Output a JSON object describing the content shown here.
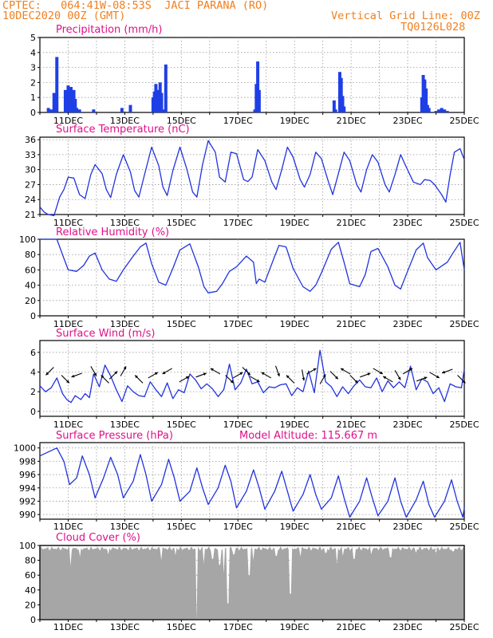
{
  "header": {
    "line1": "CPTEC:   064:41W-08:53S  JACI PARANA (RO)",
    "line2": "10DEC2020 00Z (GMT)",
    "grid_note": "Vertical Grid Line: 00Z",
    "run_code": "TQ0126L028"
  },
  "colors": {
    "header": "#f08020",
    "panel_title": "#e0108a",
    "series_line": "#2233dd",
    "bars": "#1f3fe6",
    "cloud_fill": "#a6a6a6",
    "wind_arrow": "#000000"
  },
  "x_axis": {
    "start_day": 10,
    "end_day": 25,
    "tick_labels": [
      "11DEC",
      "13DEC",
      "15DEC",
      "17DEC",
      "19DEC",
      "21DEC",
      "23DEC",
      "25DEC"
    ],
    "grid": "vertical dotted at 00Z"
  },
  "chart_data": [
    {
      "id": "precip",
      "type": "bar",
      "title": "Precipitation (mm/h)",
      "ylim": [
        0,
        5
      ],
      "yticks": [
        0,
        1,
        2,
        3,
        4,
        5
      ],
      "x": [
        10.3,
        10.4,
        10.5,
        10.55,
        10.6,
        10.9,
        11.0,
        11.05,
        11.1,
        11.15,
        11.2,
        11.25,
        11.3,
        11.4,
        11.9,
        12.9,
        13.2,
        14.0,
        14.05,
        14.1,
        14.15,
        14.2,
        14.25,
        14.3,
        14.4,
        14.45,
        17.6,
        17.65,
        17.7,
        17.75,
        20.4,
        20.45,
        20.6,
        20.65,
        20.7,
        20.75,
        23.5,
        23.55,
        23.6,
        23.65,
        23.7,
        23.75,
        24.0,
        24.1,
        24.2,
        24.3,
        24.4
      ],
      "values": [
        0.3,
        0.2,
        1.3,
        0.2,
        3.7,
        1.5,
        1.8,
        1.6,
        1.7,
        1.3,
        1.5,
        0.9,
        0.3,
        0.2,
        0.2,
        0.3,
        0.5,
        1.0,
        1.4,
        1.9,
        1.3,
        1.5,
        2.0,
        1.3,
        0.2,
        3.2,
        0.2,
        1.9,
        3.4,
        1.5,
        0.8,
        0.2,
        2.7,
        2.3,
        1.1,
        0.4,
        1.0,
        2.5,
        2.2,
        1.6,
        0.5,
        0.3,
        0.1,
        0.2,
        0.3,
        0.2,
        0.1
      ]
    },
    {
      "id": "temp",
      "type": "line",
      "title": "Surface Temperature (nC)",
      "ylim": [
        21,
        36.5
      ],
      "yticks": [
        21,
        24,
        27,
        30,
        33,
        36
      ],
      "x": [
        10.0,
        10.15,
        10.3,
        10.5,
        10.7,
        10.85,
        11.0,
        11.2,
        11.4,
        11.6,
        11.8,
        11.95,
        12.2,
        12.35,
        12.5,
        12.7,
        12.95,
        13.2,
        13.35,
        13.5,
        13.7,
        13.95,
        14.2,
        14.35,
        14.5,
        14.7,
        14.95,
        15.2,
        15.4,
        15.55,
        15.75,
        15.95,
        16.2,
        16.35,
        16.55,
        16.75,
        16.95,
        17.2,
        17.35,
        17.5,
        17.7,
        17.95,
        18.2,
        18.35,
        18.55,
        18.75,
        18.95,
        19.2,
        19.35,
        19.55,
        19.75,
        19.95,
        20.2,
        20.35,
        20.55,
        20.75,
        20.95,
        21.2,
        21.35,
        21.55,
        21.75,
        21.95,
        22.2,
        22.35,
        22.55,
        22.75,
        22.95,
        23.2,
        23.45,
        23.6,
        23.8,
        23.95,
        24.2,
        24.35,
        24.5,
        24.65,
        24.85,
        25.0
      ],
      "values": [
        22.5,
        21.5,
        21.0,
        20.8,
        24.5,
        26.0,
        28.5,
        28.3,
        25.0,
        24.2,
        29.0,
        31.0,
        29.2,
        26.0,
        24.4,
        29.0,
        33.0,
        29.5,
        25.8,
        24.5,
        29.0,
        34.5,
        30.8,
        26.5,
        24.8,
        29.8,
        34.5,
        30.0,
        25.5,
        24.5,
        31.0,
        35.8,
        33.5,
        28.5,
        27.5,
        33.5,
        33.2,
        28.0,
        27.6,
        28.5,
        34.0,
        31.8,
        27.5,
        26.0,
        30.0,
        34.5,
        32.5,
        28.0,
        26.5,
        29.0,
        33.5,
        32.2,
        27.5,
        25.0,
        29.2,
        33.5,
        31.8,
        27.0,
        25.5,
        30.0,
        33.0,
        31.5,
        27.0,
        25.5,
        29.0,
        33.0,
        30.5,
        27.5,
        27.0,
        28.0,
        27.8,
        27.0,
        25.0,
        23.5,
        29.0,
        33.5,
        34.2,
        32.0
      ]
    },
    {
      "id": "rh",
      "type": "line",
      "title": "Relative Humidity (%)",
      "ylim": [
        0,
        100
      ],
      "yticks": [
        0,
        20,
        40,
        60,
        80,
        100
      ],
      "x": [
        10.0,
        10.3,
        10.6,
        10.85,
        11.0,
        11.3,
        11.55,
        11.75,
        11.95,
        12.2,
        12.45,
        12.7,
        12.95,
        13.3,
        13.55,
        13.75,
        13.95,
        14.2,
        14.45,
        14.7,
        14.95,
        15.3,
        15.6,
        15.8,
        15.95,
        16.25,
        16.45,
        16.7,
        16.95,
        17.3,
        17.55,
        17.65,
        17.75,
        17.95,
        18.3,
        18.45,
        18.7,
        18.95,
        19.3,
        19.55,
        19.75,
        19.95,
        20.3,
        20.55,
        20.75,
        20.95,
        21.3,
        21.5,
        21.7,
        21.95,
        22.3,
        22.55,
        22.75,
        22.95,
        23.3,
        23.55,
        23.7,
        24.0,
        24.4,
        24.6,
        24.85,
        25.0
      ],
      "values": [
        100,
        100,
        100,
        75,
        60,
        58,
        66,
        78,
        82,
        60,
        48,
        45,
        60,
        78,
        90,
        95,
        68,
        44,
        40,
        62,
        86,
        94,
        64,
        38,
        30,
        32,
        42,
        58,
        64,
        78,
        70,
        42,
        48,
        44,
        78,
        92,
        90,
        62,
        38,
        32,
        40,
        56,
        87,
        96,
        70,
        42,
        38,
        54,
        84,
        88,
        64,
        40,
        35,
        54,
        86,
        95,
        76,
        60,
        70,
        82,
        96,
        60
      ]
    },
    {
      "id": "wind",
      "type": "line",
      "title": "Surface Wind (m/s)",
      "ylim": [
        -0.5,
        7.2
      ],
      "yticks": [
        0,
        2,
        4,
        6
      ],
      "x": [
        10.0,
        10.2,
        10.4,
        10.6,
        10.8,
        10.95,
        11.1,
        11.25,
        11.45,
        11.6,
        11.75,
        11.9,
        12.1,
        12.3,
        12.5,
        12.7,
        12.9,
        13.1,
        13.3,
        13.5,
        13.7,
        13.9,
        14.1,
        14.3,
        14.5,
        14.7,
        14.9,
        15.1,
        15.3,
        15.5,
        15.7,
        15.9,
        16.1,
        16.3,
        16.5,
        16.7,
        16.9,
        17.1,
        17.3,
        17.5,
        17.7,
        17.9,
        18.1,
        18.3,
        18.5,
        18.7,
        18.9,
        19.1,
        19.3,
        19.5,
        19.7,
        19.9,
        20.1,
        20.3,
        20.5,
        20.7,
        20.9,
        21.1,
        21.3,
        21.5,
        21.7,
        21.9,
        22.1,
        22.3,
        22.5,
        22.7,
        22.9,
        23.1,
        23.3,
        23.5,
        23.7,
        23.9,
        24.1,
        24.3,
        24.5,
        24.7,
        24.9,
        25.0
      ],
      "values": [
        2.6,
        2.0,
        2.4,
        3.4,
        1.8,
        1.2,
        0.9,
        1.6,
        1.2,
        1.8,
        1.4,
        3.8,
        2.5,
        4.7,
        3.6,
        2.2,
        1.0,
        2.6,
        2.0,
        1.6,
        1.5,
        3.0,
        2.2,
        1.5,
        2.9,
        1.3,
        2.2,
        1.9,
        3.8,
        3.2,
        2.3,
        2.8,
        2.3,
        1.5,
        2.2,
        4.8,
        2.2,
        2.9,
        4.3,
        2.8,
        3.0,
        1.9,
        2.5,
        2.4,
        2.7,
        2.8,
        1.6,
        2.4,
        2.0,
        4.1,
        1.9,
        6.2,
        3.0,
        2.5,
        1.5,
        2.5,
        1.8,
        2.6,
        3.2,
        2.5,
        2.4,
        3.4,
        2.0,
        3.1,
        2.4,
        3.0,
        2.4,
        4.6,
        2.2,
        3.3,
        3.0,
        1.8,
        2.4,
        1.0,
        2.8,
        2.5,
        2.4,
        4.3
      ]
    },
    {
      "id": "pressure",
      "type": "line",
      "title": "Surface Pressure (hPa)",
      "annotation": "Model Altitude: 115.667 m",
      "ylim": [
        989.3,
        1000.8
      ],
      "yticks": [
        990,
        992,
        994,
        996,
        998,
        1000
      ],
      "x": [
        10.0,
        10.3,
        10.6,
        10.85,
        11.05,
        11.3,
        11.5,
        11.75,
        11.95,
        12.25,
        12.5,
        12.75,
        12.95,
        13.3,
        13.55,
        13.75,
        13.95,
        14.3,
        14.55,
        14.75,
        14.95,
        15.3,
        15.55,
        15.75,
        15.95,
        16.3,
        16.55,
        16.75,
        16.95,
        17.3,
        17.55,
        17.75,
        17.95,
        18.3,
        18.55,
        18.75,
        18.95,
        19.3,
        19.55,
        19.75,
        19.95,
        20.3,
        20.55,
        20.75,
        20.95,
        21.3,
        21.55,
        21.75,
        21.95,
        22.3,
        22.55,
        22.75,
        22.95,
        23.3,
        23.55,
        23.75,
        23.95,
        24.3,
        24.55,
        24.75,
        24.95,
        25.0
      ],
      "values": [
        998.8,
        999.4,
        1000.0,
        998.0,
        994.5,
        995.5,
        998.8,
        996.0,
        992.5,
        995.5,
        998.6,
        996.0,
        992.5,
        995.0,
        999.0,
        996.0,
        992.0,
        994.5,
        998.3,
        995.5,
        992.0,
        993.5,
        997.0,
        994.0,
        991.5,
        994.0,
        997.4,
        995.0,
        991.0,
        993.5,
        996.7,
        994.0,
        990.8,
        993.5,
        996.5,
        993.5,
        990.5,
        993.0,
        996.0,
        993.0,
        990.8,
        992.5,
        995.8,
        992.5,
        989.6,
        992.0,
        995.5,
        992.5,
        989.8,
        992.0,
        995.5,
        992.0,
        989.6,
        992.2,
        995.0,
        991.5,
        989.6,
        992.0,
        995.2,
        992.0,
        989.6,
        991.0
      ]
    },
    {
      "id": "cloud",
      "type": "bar",
      "title": "Cloud Cover (%)",
      "ylim": [
        0,
        100
      ],
      "yticks": [
        0,
        20,
        40,
        60,
        80,
        100
      ],
      "note": "Full-width grey fill near 95-100% with dips",
      "dips": [
        {
          "x": 11.1,
          "value": 72
        },
        {
          "x": 11.4,
          "value": 85
        },
        {
          "x": 12.4,
          "value": 88
        },
        {
          "x": 14.3,
          "value": 80
        },
        {
          "x": 14.8,
          "value": 87
        },
        {
          "x": 15.55,
          "value": 0
        },
        {
          "x": 15.8,
          "value": 75
        },
        {
          "x": 16.1,
          "value": 82
        },
        {
          "x": 16.35,
          "value": 74
        },
        {
          "x": 16.5,
          "value": 62
        },
        {
          "x": 16.65,
          "value": 22
        },
        {
          "x": 16.85,
          "value": 88
        },
        {
          "x": 17.4,
          "value": 60
        },
        {
          "x": 17.55,
          "value": 80
        },
        {
          "x": 18.35,
          "value": 86
        },
        {
          "x": 18.85,
          "value": 35
        },
        {
          "x": 19.2,
          "value": 85
        },
        {
          "x": 20.1,
          "value": 90
        },
        {
          "x": 20.5,
          "value": 75
        },
        {
          "x": 20.7,
          "value": 86
        },
        {
          "x": 21.1,
          "value": 82
        },
        {
          "x": 21.7,
          "value": 88
        },
        {
          "x": 22.4,
          "value": 84
        },
        {
          "x": 23.3,
          "value": 90
        },
        {
          "x": 24.0,
          "value": 88
        },
        {
          "x": 24.6,
          "value": 92
        }
      ]
    }
  ],
  "wind_vectors": {
    "note": "arrow direction in degrees (math convention, 0 = east, 90 = up)",
    "x": [
      10.35,
      10.9,
      11.3,
      11.9,
      12.3,
      12.6,
      12.95,
      13.5,
      14.0,
      14.5,
      15.1,
      15.7,
      16.2,
      16.7,
      17.0,
      17.3,
      17.6,
      18.0,
      18.4,
      18.85,
      19.3,
      19.6,
      20.0,
      20.4,
      20.8,
      21.1,
      21.5,
      21.95,
      22.3,
      22.65,
      23.0,
      23.5,
      23.95,
      24.4,
      24.9
    ],
    "angle": [
      -135,
      -45,
      200,
      -60,
      135,
      45,
      60,
      135,
      30,
      210,
      30,
      20,
      150,
      -45,
      30,
      -45,
      -30,
      150,
      -70,
      135,
      -80,
      30,
      60,
      -45,
      150,
      -45,
      20,
      -30,
      150,
      -60,
      30,
      20,
      -30,
      200,
      -45
    ]
  }
}
